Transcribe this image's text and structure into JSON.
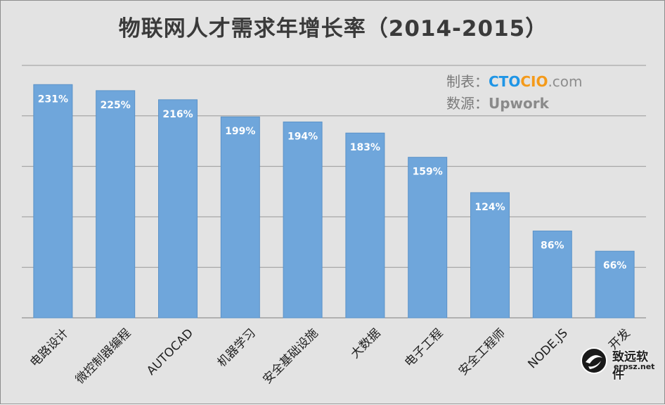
{
  "chart_data": {
    "type": "bar",
    "title": "物联网人才需求年增长率（2014-2015）",
    "categories": [
      "电路设计",
      "微控制器编程",
      "AUTOCAD",
      "机器学习",
      "安全基础设施",
      "大数据",
      "电子工程",
      "安全工程师",
      "NODE.JS",
      "开发"
    ],
    "values": [
      231,
      225,
      216,
      199,
      194,
      183,
      159,
      124,
      86,
      66
    ],
    "data_labels": [
      "231%",
      "225%",
      "216%",
      "199%",
      "194%",
      "183%",
      "159%",
      "124%",
      "86%",
      "66%"
    ],
    "ylim": [
      0,
      250
    ],
    "grid": true,
    "bar_color": "#6fa6db",
    "label_color": "#ffffff"
  },
  "credits": {
    "made_by_label": "制表：",
    "brand_cto": "CTO",
    "brand_cio": "CIO",
    "brand_com": ".com",
    "source_label": "数源：",
    "source": "Upwork"
  },
  "watermark": {
    "name": "致远软件",
    "url": "erpsz.net"
  }
}
